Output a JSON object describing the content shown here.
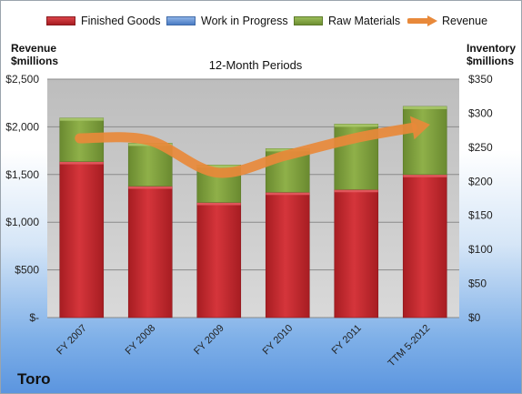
{
  "company": "Toro",
  "left_axis_title_line1": "Revenue",
  "left_axis_title_line2": "$millions",
  "right_axis_title_line1": "Inventory",
  "right_axis_title_line2": "$millions",
  "colors": {
    "finished_goods": "#c1272d",
    "work_in_progress": "#5b8ed6",
    "raw_materials": "#7a9b3a",
    "revenue": "#e8893a",
    "plot_background": "#c8c8c8"
  },
  "chart_data": {
    "type": "bar",
    "title": "12-Month Periods",
    "categories": [
      "FY 2007",
      "FY 2008",
      "FY 2009",
      "FY 2010",
      "FY 2011",
      "TTM 5-2012"
    ],
    "series": [
      {
        "name": "Finished Goods",
        "axis": "right",
        "stacked": true,
        "values": [
          229,
          193,
          169,
          184,
          188,
          210
        ]
      },
      {
        "name": "Work in Progress",
        "axis": "right",
        "stacked": true,
        "values": [
          0,
          0,
          0,
          0,
          0,
          0
        ]
      },
      {
        "name": "Raw Materials",
        "axis": "right",
        "stacked": true,
        "values": [
          64,
          63,
          55,
          64,
          96,
          100
        ]
      },
      {
        "name": "Revenue",
        "axis": "left",
        "type": "line",
        "values": [
          1880,
          1860,
          1520,
          1700,
          1880,
          1990
        ]
      }
    ],
    "legend": [
      "Finished Goods",
      "Work in Progress",
      "Raw Materials",
      "Revenue"
    ],
    "legend_position": "top",
    "y_left": {
      "range": [
        0,
        2500
      ],
      "ticks": [
        "$-",
        "$500",
        "$1,000",
        "$1,500",
        "$2,000",
        "$2,500"
      ]
    },
    "y_right": {
      "range": [
        0,
        350
      ],
      "ticks": [
        "$0",
        "$50",
        "$100",
        "$150",
        "$200",
        "$250",
        "$300",
        "$350"
      ]
    },
    "grid": true
  }
}
